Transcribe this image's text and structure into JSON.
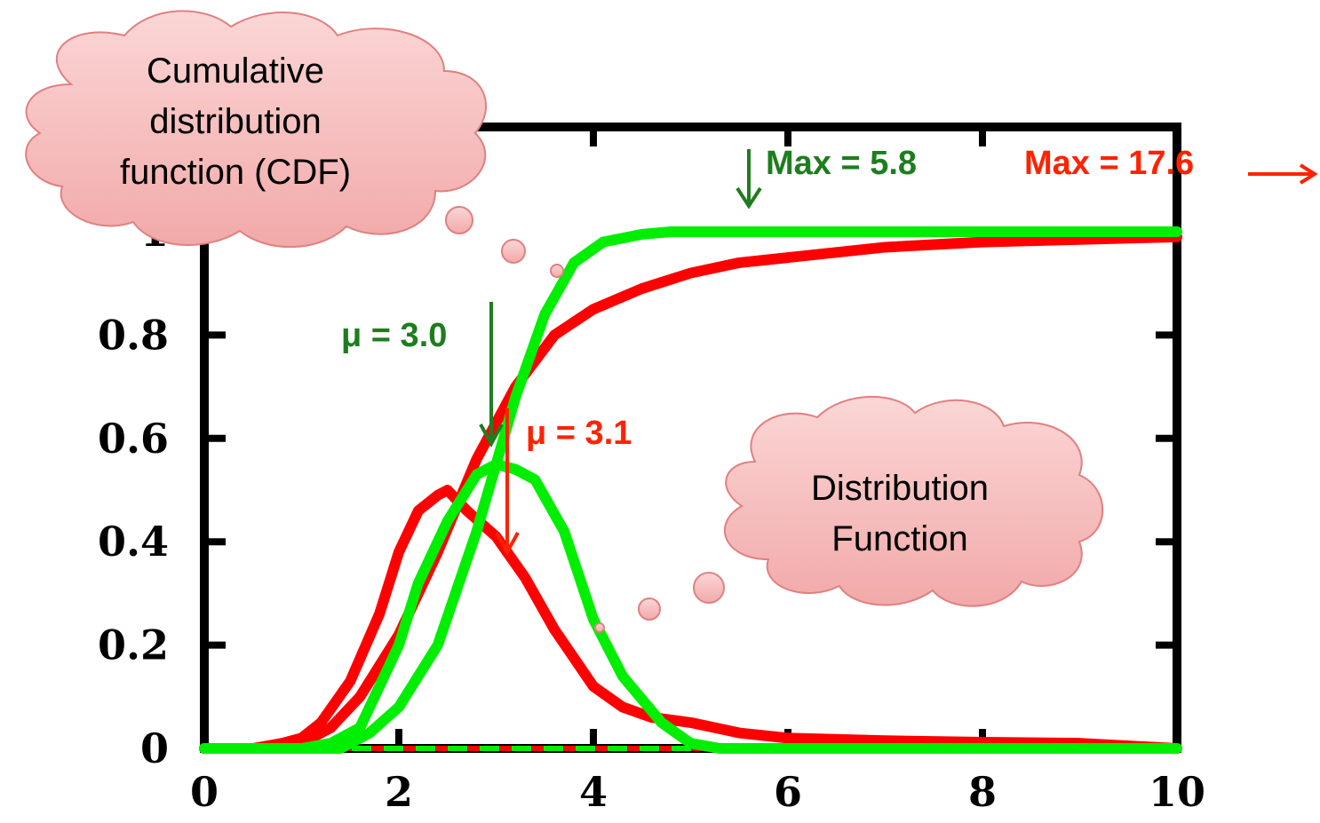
{
  "chart_data": {
    "type": "line",
    "xlim": [
      0,
      10
    ],
    "ylim": [
      0,
      1
    ],
    "x_ticks": [
      "0",
      "2",
      "4",
      "6",
      "8",
      "10"
    ],
    "y_ticks": [
      "0",
      "0.2",
      "0.4",
      "0.6",
      "0.8",
      "1"
    ],
    "grid": false,
    "series": [
      {
        "kind": "pdf",
        "color": "#ff0000",
        "points": [
          [
            0,
            0
          ],
          [
            0.5,
            0
          ],
          [
            0.8,
            0.01
          ],
          [
            1.0,
            0.02
          ],
          [
            1.2,
            0.05
          ],
          [
            1.5,
            0.13
          ],
          [
            1.8,
            0.26
          ],
          [
            2.0,
            0.38
          ],
          [
            2.2,
            0.46
          ],
          [
            2.4,
            0.49
          ],
          [
            2.5,
            0.5
          ],
          [
            2.7,
            0.46
          ],
          [
            3.0,
            0.41
          ],
          [
            3.3,
            0.33
          ],
          [
            3.6,
            0.23
          ],
          [
            4.0,
            0.12
          ],
          [
            4.3,
            0.08
          ],
          [
            4.6,
            0.06
          ],
          [
            5.0,
            0.05
          ],
          [
            5.5,
            0.03
          ],
          [
            6.0,
            0.02
          ],
          [
            7.0,
            0.015
          ],
          [
            8.0,
            0.012
          ],
          [
            9.0,
            0.01
          ],
          [
            9.5,
            0.005
          ],
          [
            10,
            0
          ]
        ]
      },
      {
        "kind": "cdf",
        "color": "#ff0000",
        "points": [
          [
            0,
            0
          ],
          [
            0.8,
            0
          ],
          [
            1.0,
            0.01
          ],
          [
            1.3,
            0.04
          ],
          [
            1.6,
            0.1
          ],
          [
            2.0,
            0.22
          ],
          [
            2.4,
            0.38
          ],
          [
            2.8,
            0.56
          ],
          [
            3.2,
            0.7
          ],
          [
            3.6,
            0.8
          ],
          [
            4.0,
            0.85
          ],
          [
            4.5,
            0.89
          ],
          [
            5.0,
            0.92
          ],
          [
            5.5,
            0.94
          ],
          [
            6.0,
            0.95
          ],
          [
            7.0,
            0.97
          ],
          [
            8.0,
            0.98
          ],
          [
            9.0,
            0.985
          ],
          [
            10,
            0.99
          ]
        ]
      },
      {
        "kind": "pdf",
        "color": "#00ee00",
        "points": [
          [
            0,
            0
          ],
          [
            1.0,
            0
          ],
          [
            1.3,
            0.01
          ],
          [
            1.6,
            0.04
          ],
          [
            2.0,
            0.2
          ],
          [
            2.2,
            0.32
          ],
          [
            2.5,
            0.44
          ],
          [
            2.8,
            0.53
          ],
          [
            3.0,
            0.55
          ],
          [
            3.2,
            0.54
          ],
          [
            3.4,
            0.52
          ],
          [
            3.7,
            0.42
          ],
          [
            4.0,
            0.25
          ],
          [
            4.3,
            0.14
          ],
          [
            4.7,
            0.05
          ],
          [
            5.0,
            0.01
          ],
          [
            5.3,
            0
          ],
          [
            10,
            0
          ]
        ]
      },
      {
        "kind": "cdf",
        "color": "#00ee00",
        "points": [
          [
            0,
            0
          ],
          [
            1.4,
            0
          ],
          [
            1.7,
            0.03
          ],
          [
            2.0,
            0.08
          ],
          [
            2.4,
            0.2
          ],
          [
            2.8,
            0.42
          ],
          [
            3.2,
            0.68
          ],
          [
            3.5,
            0.84
          ],
          [
            3.8,
            0.94
          ],
          [
            4.1,
            0.98
          ],
          [
            4.5,
            0.995
          ],
          [
            4.8,
            1.0
          ],
          [
            10,
            1.0
          ]
        ]
      }
    ]
  },
  "clouds": {
    "cdf_label_lines": [
      "Cumulative",
      "distribution",
      "function (CDF)"
    ],
    "pdf_label_lines": [
      "Distribution",
      "Function"
    ]
  },
  "annotations": {
    "green_max": "Max = 5.8",
    "red_max": "Max = 17.6",
    "green_mu": "μ = 3.0",
    "red_mu": "μ = 3.1"
  },
  "colors": {
    "red": "#ff0000",
    "green": "#00ee00",
    "dark_green": "#1e7d1e",
    "cloud_fill": "#f7c3c3",
    "cloud_stroke": "#e08080",
    "arrow_red": "#ff2200"
  }
}
